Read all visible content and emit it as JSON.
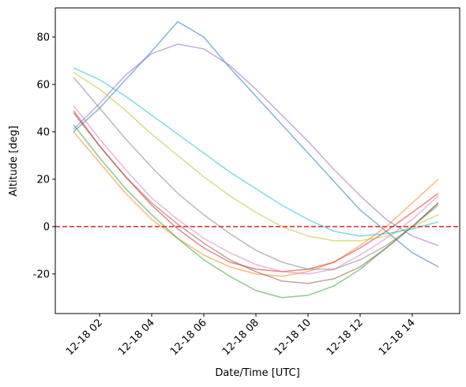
{
  "chart_data": {
    "type": "line",
    "xlabel": "Date/Time [UTC]",
    "ylabel": "Altitude [deg]",
    "x": [
      1,
      2,
      3,
      4,
      5,
      6,
      7,
      8,
      9,
      10,
      11,
      12,
      13,
      14,
      15
    ],
    "xlim": [
      0.3,
      15.82
    ],
    "ylim": [
      -36.7,
      92.3
    ],
    "xticks": [
      {
        "value": 2,
        "label": "12-18 02"
      },
      {
        "value": 4,
        "label": "12-18 04"
      },
      {
        "value": 6,
        "label": "12-18 06"
      },
      {
        "value": 8,
        "label": "12-18 08"
      },
      {
        "value": 10,
        "label": "12-18 10"
      },
      {
        "value": 12,
        "label": "12-18 12"
      },
      {
        "value": 14,
        "label": "12-18 14"
      }
    ],
    "yticks": [
      -20,
      0,
      20,
      40,
      60,
      80
    ],
    "reference_line": {
      "value": 0,
      "color": "#d62728"
    },
    "series": [
      {
        "color": "#1f77b4",
        "values": [
          40,
          50,
          62,
          74,
          86.5,
          80,
          67,
          55,
          43,
          31,
          19,
          7,
          -2,
          -11,
          -17
        ]
      },
      {
        "color": "#ff7f0e",
        "values": [
          40,
          27,
          14,
          3,
          -5,
          -12,
          -17,
          -20,
          -21,
          -19,
          -15,
          -8,
          0,
          10,
          20
        ]
      },
      {
        "color": "#2ca02c",
        "values": [
          43,
          29,
          16,
          5,
          -5,
          -14,
          -21,
          -27,
          -30,
          -29,
          -25,
          -18,
          -9,
          0,
          10
        ]
      },
      {
        "color": "#d62728",
        "values": [
          48,
          34,
          21,
          9,
          -1,
          -9,
          -15,
          -18,
          -19,
          -18,
          -15,
          -9,
          -2,
          6,
          14
        ]
      },
      {
        "color": "#9467bd",
        "values": [
          41,
          52,
          64,
          73,
          77,
          75,
          68,
          58,
          47,
          36,
          24,
          13,
          3,
          -4,
          -8
        ]
      },
      {
        "color": "#8c564b",
        "values": [
          49,
          34,
          21,
          10,
          1,
          -7,
          -14,
          -19,
          -23,
          -24,
          -22,
          -17,
          -9,
          0,
          10
        ]
      },
      {
        "color": "#e377c2",
        "values": [
          51,
          37,
          24,
          12,
          3,
          -5,
          -11,
          -16,
          -19,
          -20,
          -18,
          -12,
          -5,
          3,
          13
        ]
      },
      {
        "color": "#7f7f7f",
        "values": [
          63,
          50,
          37,
          25,
          14,
          5,
          -3,
          -10,
          -15,
          -18,
          -18,
          -14,
          -8,
          0,
          9
        ]
      },
      {
        "color": "#bcbd22",
        "values": [
          65,
          58,
          49,
          39,
          30,
          21,
          13,
          6,
          0,
          -4,
          -6,
          -6,
          -4,
          0,
          5
        ]
      },
      {
        "color": "#17becf",
        "values": [
          67,
          62,
          55,
          47,
          39,
          31,
          23,
          16,
          9,
          3,
          -2,
          -4,
          -3,
          -1,
          2
        ]
      }
    ]
  }
}
